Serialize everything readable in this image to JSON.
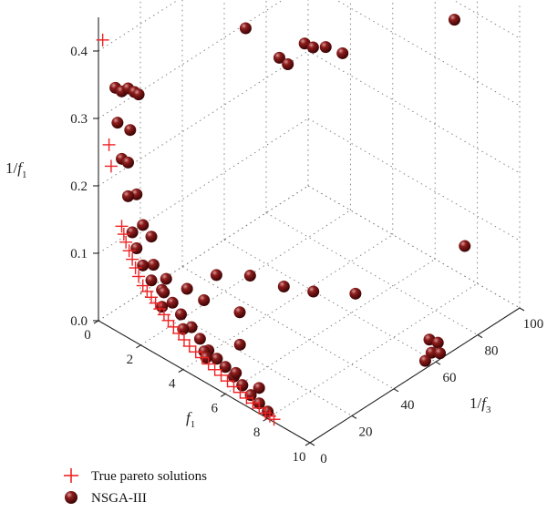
{
  "chart_data": {
    "type": "scatter",
    "title": "",
    "axes": {
      "x": {
        "label_main": "f",
        "label_sub": "1",
        "range": [
          0,
          10
        ],
        "ticks": [
          "0",
          "2",
          "4",
          "6",
          "8",
          "10"
        ]
      },
      "y": {
        "label_main": "1/f",
        "label_sub": "3",
        "range": [
          0,
          100
        ],
        "ticks": [
          "0",
          "20",
          "40",
          "60",
          "80",
          "100"
        ]
      },
      "z": {
        "label_main": "1/f",
        "label_sub": "1",
        "range": [
          0,
          0.45
        ],
        "ticks": [
          "0.0",
          "0.1",
          "0.2",
          "0.3",
          "0.4"
        ]
      }
    },
    "grid": true,
    "legend_position": "bottom-left",
    "series": [
      {
        "name": "True pareto solutions",
        "marker": "plus",
        "color": "#ee2222",
        "points": [
          [
            0.2,
            0,
            0.42
          ],
          [
            0.5,
            0,
            0.27
          ],
          [
            0.6,
            0,
            0.24
          ],
          [
            1.1,
            0,
            0.16
          ],
          [
            1.2,
            0,
            0.15
          ],
          [
            1.3,
            0,
            0.14
          ],
          [
            1.45,
            0,
            0.13
          ],
          [
            1.6,
            0,
            0.12
          ],
          [
            1.75,
            0,
            0.11
          ],
          [
            1.9,
            0,
            0.1
          ],
          [
            2.1,
            0,
            0.09
          ],
          [
            2.3,
            0,
            0.085
          ],
          [
            2.5,
            0,
            0.08
          ],
          [
            2.7,
            0,
            0.075
          ],
          [
            2.9,
            0,
            0.07
          ],
          [
            3.1,
            0,
            0.065
          ],
          [
            3.3,
            0,
            0.06
          ],
          [
            3.55,
            0,
            0.055
          ],
          [
            3.8,
            0,
            0.05
          ],
          [
            4.05,
            0,
            0.045
          ],
          [
            4.3,
            0,
            0.04
          ],
          [
            4.6,
            0,
            0.037
          ],
          [
            4.9,
            0,
            0.034
          ],
          [
            5.2,
            0,
            0.03
          ],
          [
            5.5,
            0,
            0.027
          ],
          [
            5.8,
            0,
            0.024
          ],
          [
            6.1,
            0,
            0.021
          ],
          [
            6.4,
            0,
            0.018
          ],
          [
            6.7,
            0,
            0.015
          ],
          [
            7.0,
            0,
            0.012
          ],
          [
            7.3,
            0,
            0.01
          ],
          [
            7.6,
            0,
            0.008
          ],
          [
            7.9,
            0,
            0.006
          ],
          [
            8.1,
            0,
            0.005
          ],
          [
            8.3,
            0,
            0.004
          ]
        ]
      },
      {
        "name": "NSGA-III",
        "marker": "sphere",
        "color": "#7a1414",
        "points": [
          [
            0.8,
            0,
            0.36
          ],
          [
            1.1,
            0,
            0.36
          ],
          [
            1.4,
            0,
            0.37
          ],
          [
            1.7,
            0,
            0.37
          ],
          [
            1.9,
            0,
            0.37
          ],
          [
            0.9,
            0,
            0.31
          ],
          [
            1.5,
            0,
            0.31
          ],
          [
            1.1,
            0,
            0.26
          ],
          [
            1.4,
            0,
            0.26
          ],
          [
            1.8,
            0,
            0.22
          ],
          [
            1.4,
            0,
            0.21
          ],
          [
            2.1,
            0,
            0.18
          ],
          [
            2.5,
            0,
            0.17
          ],
          [
            1.6,
            0,
            0.16
          ],
          [
            1.8,
            0,
            0.14
          ],
          [
            2.6,
            0,
            0.13
          ],
          [
            3.2,
            0,
            0.12
          ],
          [
            2.1,
            0,
            0.12
          ],
          [
            2.5,
            0,
            0.105
          ],
          [
            3.0,
            0,
            0.1
          ],
          [
            3.5,
            0,
            0.09
          ],
          [
            3.9,
            0,
            0.08
          ],
          [
            4.4,
            0,
            0.07
          ],
          [
            4.8,
            0,
            0.06
          ],
          [
            5.2,
            0,
            0.05
          ],
          [
            5.6,
            0,
            0.045
          ],
          [
            6.0,
            0,
            0.04
          ],
          [
            6.4,
            0,
            0.033
          ],
          [
            6.8,
            0,
            0.027
          ],
          [
            7.2,
            0,
            0.02
          ],
          [
            7.6,
            0,
            0.015
          ],
          [
            8.0,
            0,
            0.01
          ],
          [
            3.0,
            0,
            0.075
          ],
          [
            4.0,
            0,
            0.06
          ],
          [
            5.0,
            0,
            0.045
          ],
          [
            2.1,
            10,
            0.06
          ],
          [
            2.8,
            14,
            0.07
          ],
          [
            3.4,
            16,
            0.06
          ],
          [
            4.5,
            22,
            0.05
          ],
          [
            5.5,
            12,
            0.04
          ],
          [
            4.9,
            2,
            0.03
          ],
          [
            6.1,
            4,
            0.025
          ],
          [
            6.6,
            2,
            0.02
          ],
          [
            7.0,
            6,
            0.015
          ],
          [
            3.0,
            26,
            0.07
          ],
          [
            3.6,
            36,
            0.06
          ],
          [
            4.6,
            42,
            0.05
          ],
          [
            5.4,
            48,
            0.045
          ],
          [
            6.4,
            58,
            0.04
          ],
          [
            7.8,
            96,
            0.06
          ],
          [
            2.0,
            50,
            0.37
          ],
          [
            3.2,
            54,
            0.34
          ],
          [
            3.4,
            56,
            0.33
          ],
          [
            3.8,
            60,
            0.36
          ],
          [
            3.9,
            63,
            0.35
          ],
          [
            4.2,
            66,
            0.35
          ],
          [
            4.6,
            70,
            0.34
          ],
          [
            8.7,
            82,
            0.44
          ],
          [
            9.5,
            62,
            0.02
          ],
          [
            9.7,
            64,
            0.015
          ],
          [
            9.8,
            60,
            0.01
          ],
          [
            9.9,
            63,
            0.005
          ],
          [
            9.7,
            58,
            0.0
          ]
        ]
      }
    ]
  }
}
